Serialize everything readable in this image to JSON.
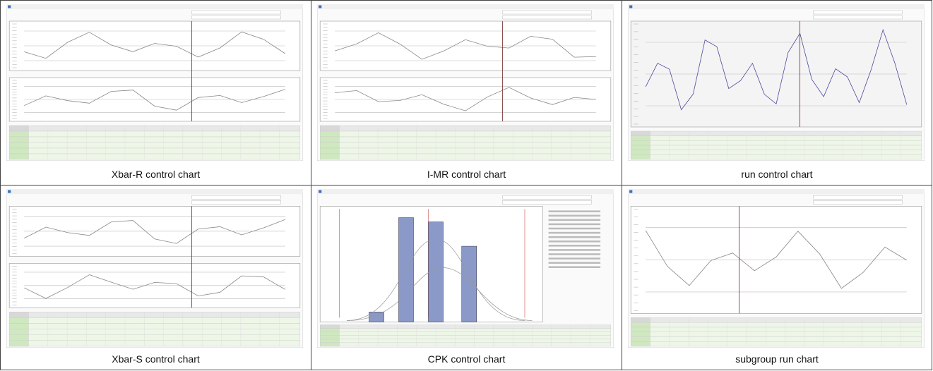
{
  "panels": [
    {
      "caption": "Xbar-R control chart"
    },
    {
      "caption": "I-MR control chart"
    },
    {
      "caption": "run control chart"
    },
    {
      "caption": "Xbar-S control chart"
    },
    {
      "caption": "CPK control chart"
    },
    {
      "caption": "subgroup run chart"
    }
  ]
}
